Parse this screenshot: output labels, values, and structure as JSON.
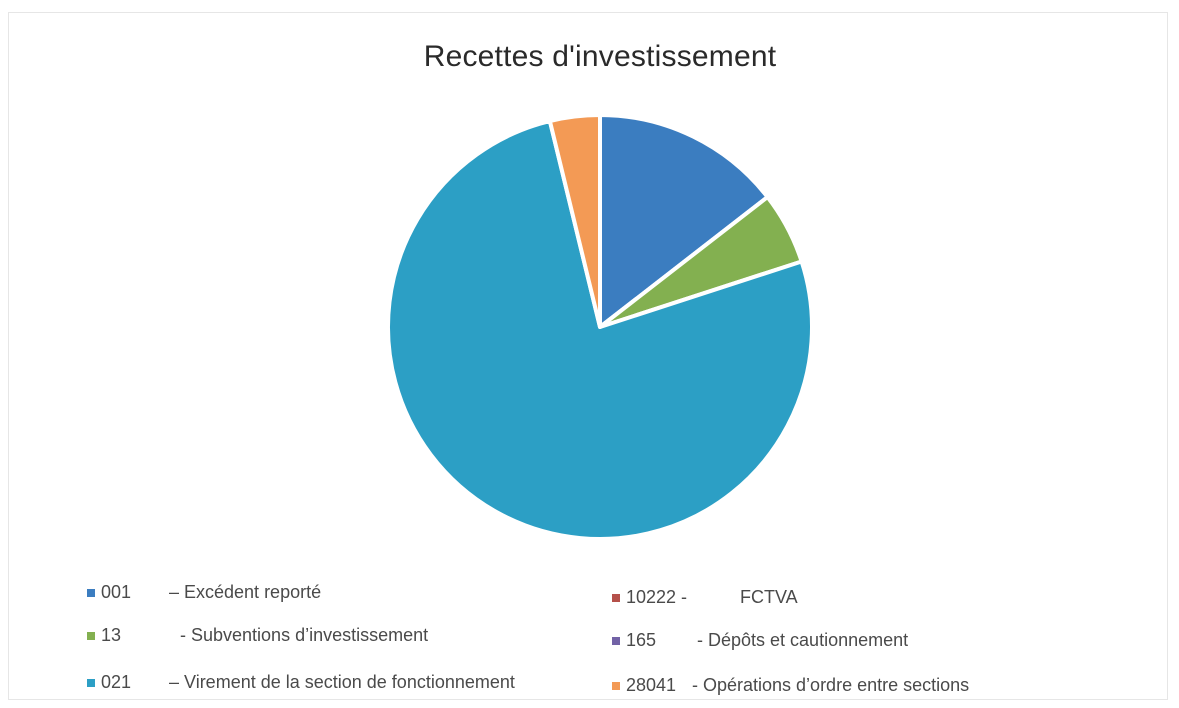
{
  "chart_data": {
    "type": "pie",
    "title": "Recettes d'investissement",
    "legend_position": "bottom",
    "series": [
      {
        "name": "",
        "slices": [
          {
            "code": "001",
            "label": "– Excédent reporté",
            "value": 14.5,
            "color": "#3b7dc0"
          },
          {
            "code": "10222 -",
            "label": "FCTVA",
            "value": 0,
            "color": "#b5504a"
          },
          {
            "code": "13",
            "label": "- Subventions d’investissement",
            "value": 5.5,
            "color": "#83b050"
          },
          {
            "code": "165",
            "label": "- Dépôts et cautionnement",
            "value": 0,
            "color": "#7262a6"
          },
          {
            "code": "021",
            "label": "– Virement de la section de fonctionnement",
            "value": 76.2,
            "color": "#2c9fc5"
          },
          {
            "code": "28041",
            "label": "- Opérations d’ordre entre sections",
            "value": 3.8,
            "color": "#f39a55"
          }
        ]
      }
    ]
  }
}
